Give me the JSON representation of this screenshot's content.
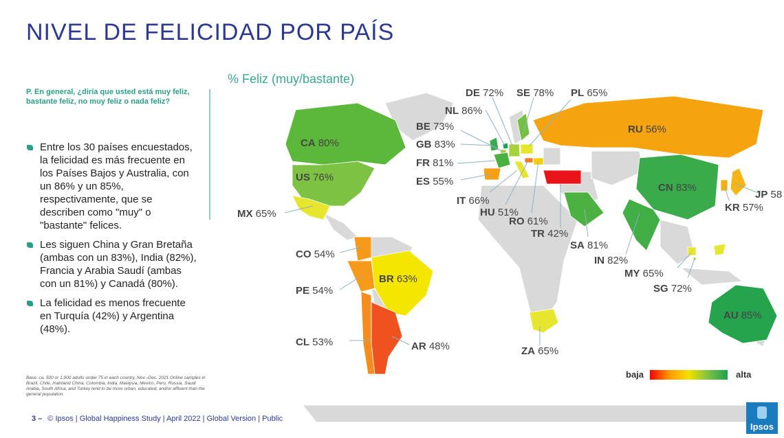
{
  "title": "NIVEL DE FELICIDAD POR PAÍS",
  "subtitle": "% Feliz (muy/bastante)",
  "question": "P. En general, ¿diría que usted está muy feliz, bastante feliz, no muy feliz o  nada feliz?",
  "bullets": [
    "Entre los 30 países encuestados, la felicidad es más frecuente en los Países Bajos y Australia, con un 86% y un 85%, respectivamente, que se describen como \"muy\" o \"bastante\" felices.",
    "Les siguen China y Gran Bretaña (ambas con un 83%), India (82%), Francia y Arabia Saudí (ambas con un 81%) y Canadá (80%).",
    "La felicidad es menos frecuente en Turquía (42%) y Argentina (48%)."
  ],
  "base_note": "Base: ca. 500 or 1,000 adults under 75 in each country, Nov.–Dec. 2021 Online samples in Brazil, Chile, mainland China, Colombia, India, Malaysia, Mexico, Peru, Russia, Saudi Arabia, South Africa, and Turkey tend to be more urban, educated, and/or affluent than the general population.",
  "footer": {
    "page": "3 –",
    "text": "© Ipsos | Global Happiness Study | April 2022 | Global Version | Public"
  },
  "legend": {
    "low": "baja",
    "high": "alta"
  },
  "logo_text": "Ipsos",
  "colors": {
    "title": "#2b3990",
    "accent": "#2a9e86",
    "land": "#d9d9d9",
    "low": "#ff0000",
    "high": "#1da050"
  },
  "countries": [
    {
      "code": "CA",
      "value": "80%",
      "color": "#5cb83a"
    },
    {
      "code": "US",
      "value": "76%",
      "color": "#7dc242"
    },
    {
      "code": "MX",
      "value": "65%",
      "color": "#e6e62e"
    },
    {
      "code": "CO",
      "value": "54%",
      "color": "#f59a1b"
    },
    {
      "code": "PE",
      "value": "54%",
      "color": "#f59a1b"
    },
    {
      "code": "BR",
      "value": "63%",
      "color": "#f5e600"
    },
    {
      "code": "CL",
      "value": "53%",
      "color": "#f58c1e"
    },
    {
      "code": "AR",
      "value": "48%",
      "color": "#f0521f"
    },
    {
      "code": "DE",
      "value": "72%",
      "color": "#a8d23a"
    },
    {
      "code": "SE",
      "value": "78%",
      "color": "#74bf44"
    },
    {
      "code": "PL",
      "value": "65%",
      "color": "#e6e62e"
    },
    {
      "code": "NL",
      "value": "86%",
      "color": "#1da050"
    },
    {
      "code": "BE",
      "value": "73%",
      "color": "#a0cf3c"
    },
    {
      "code": "GB",
      "value": "83%",
      "color": "#3aab4a"
    },
    {
      "code": "FR",
      "value": "81%",
      "color": "#4bb140"
    },
    {
      "code": "ES",
      "value": "55%",
      "color": "#f5a015"
    },
    {
      "code": "IT",
      "value": "66%",
      "color": "#e6e62e"
    },
    {
      "code": "HU",
      "value": "51%",
      "color": "#f57a22"
    },
    {
      "code": "RO",
      "value": "61%",
      "color": "#f5d000"
    },
    {
      "code": "TR",
      "value": "42%",
      "color": "#e8141a"
    },
    {
      "code": "RU",
      "value": "56%",
      "color": "#f5a30f"
    },
    {
      "code": "SA",
      "value": "81%",
      "color": "#4bb140"
    },
    {
      "code": "IN",
      "value": "82%",
      "color": "#42ae46"
    },
    {
      "code": "CN",
      "value": "83%",
      "color": "#3aab4a"
    },
    {
      "code": "JP",
      "value": "58",
      "color": "#f5b514"
    },
    {
      "code": "KR",
      "value": "57%",
      "color": "#f5ae10"
    },
    {
      "code": "MY",
      "value": "65%",
      "color": "#e6e62e"
    },
    {
      "code": "SG",
      "value": "72%",
      "color": "#a8d23a"
    },
    {
      "code": "AU",
      "value": "85%",
      "color": "#25a34d"
    },
    {
      "code": "ZA",
      "value": "65%",
      "color": "#e6e62e"
    }
  ]
}
